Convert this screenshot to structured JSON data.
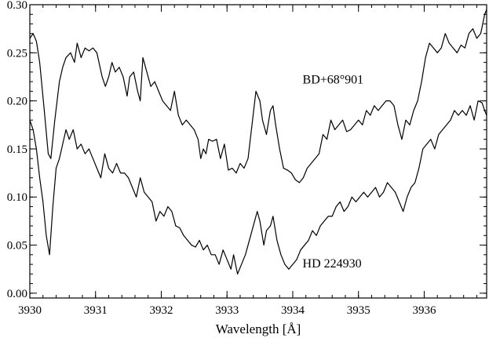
{
  "chart_data": {
    "type": "line",
    "title": "",
    "xlabel": "Wavelength [Å]",
    "ylabel": "",
    "xlim": [
      3930.0,
      3936.95
    ],
    "ylim": [
      -0.005,
      0.3
    ],
    "x_ticks": [
      3930,
      3931,
      3932,
      3933,
      3934,
      3935,
      3936
    ],
    "x_tick_labels": [
      "3930",
      "3931",
      "3932",
      "3933",
      "3934",
      "3935",
      "3936"
    ],
    "y_ticks": [
      0.0,
      0.05,
      0.1,
      0.15,
      0.2,
      0.25,
      0.3
    ],
    "y_tick_labels": [
      "0.00",
      "0.05",
      "0.10",
      "0.15",
      "0.20",
      "0.25",
      "0.30"
    ],
    "grid": false,
    "legend": "none",
    "series": [
      {
        "name": "BD+68°901",
        "label_position": {
          "x": 3934.15,
          "y": 0.218
        },
        "x": [
          3930.0,
          3930.05,
          3930.1,
          3930.15,
          3930.22,
          3930.28,
          3930.32,
          3930.38,
          3930.45,
          3930.5,
          3930.55,
          3930.62,
          3930.68,
          3930.72,
          3930.78,
          3930.84,
          3930.9,
          3930.96,
          3931.02,
          3931.1,
          3931.15,
          3931.2,
          3931.25,
          3931.3,
          3931.36,
          3931.42,
          3931.48,
          3931.52,
          3931.58,
          3931.64,
          3931.68,
          3931.72,
          3931.78,
          3931.84,
          3931.9,
          3931.96,
          3932.02,
          3932.08,
          3932.14,
          3932.2,
          3932.26,
          3932.32,
          3932.38,
          3932.44,
          3932.5,
          3932.56,
          3932.6,
          3932.64,
          3932.68,
          3932.72,
          3932.78,
          3932.84,
          3932.9,
          3932.96,
          3933.02,
          3933.08,
          3933.14,
          3933.2,
          3933.26,
          3933.32,
          3933.38,
          3933.44,
          3933.5,
          3933.54,
          3933.6,
          3933.66,
          3933.7,
          3933.74,
          3933.8,
          3933.86,
          3933.92,
          3933.98,
          3934.04,
          3934.1,
          3934.16,
          3934.22,
          3934.28,
          3934.34,
          3934.4,
          3934.46,
          3934.52,
          3934.58,
          3934.64,
          3934.7,
          3934.76,
          3934.82,
          3934.88,
          3934.94,
          3935.0,
          3935.06,
          3935.12,
          3935.18,
          3935.24,
          3935.3,
          3935.36,
          3935.42,
          3935.48,
          3935.54,
          3935.6,
          3935.66,
          3935.72,
          3935.78,
          3935.84,
          3935.9,
          3935.96,
          3936.02,
          3936.08,
          3936.14,
          3936.2,
          3936.26,
          3936.32,
          3936.38,
          3936.44,
          3936.5,
          3936.56,
          3936.62,
          3936.68,
          3936.74,
          3936.8,
          3936.86,
          3936.92,
          3936.95
        ],
        "y": [
          0.265,
          0.27,
          0.262,
          0.24,
          0.19,
          0.145,
          0.14,
          0.18,
          0.22,
          0.235,
          0.245,
          0.25,
          0.24,
          0.26,
          0.245,
          0.255,
          0.252,
          0.255,
          0.25,
          0.225,
          0.215,
          0.225,
          0.24,
          0.23,
          0.235,
          0.225,
          0.205,
          0.225,
          0.23,
          0.21,
          0.2,
          0.245,
          0.23,
          0.215,
          0.22,
          0.21,
          0.2,
          0.195,
          0.19,
          0.21,
          0.185,
          0.175,
          0.18,
          0.175,
          0.17,
          0.16,
          0.14,
          0.15,
          0.145,
          0.16,
          0.158,
          0.16,
          0.14,
          0.155,
          0.128,
          0.13,
          0.125,
          0.135,
          0.13,
          0.14,
          0.175,
          0.21,
          0.2,
          0.18,
          0.165,
          0.19,
          0.195,
          0.175,
          0.15,
          0.13,
          0.128,
          0.125,
          0.118,
          0.115,
          0.12,
          0.13,
          0.135,
          0.14,
          0.145,
          0.165,
          0.16,
          0.18,
          0.17,
          0.175,
          0.18,
          0.168,
          0.17,
          0.175,
          0.18,
          0.175,
          0.19,
          0.185,
          0.195,
          0.19,
          0.195,
          0.2,
          0.2,
          0.195,
          0.175,
          0.16,
          0.18,
          0.175,
          0.19,
          0.2,
          0.22,
          0.245,
          0.26,
          0.255,
          0.25,
          0.255,
          0.27,
          0.26,
          0.255,
          0.25,
          0.258,
          0.255,
          0.27,
          0.275,
          0.265,
          0.27,
          0.29,
          0.295
        ]
      },
      {
        "name": "HD 224930",
        "label_position": {
          "x": 3934.15,
          "y": 0.027
        },
        "x": [
          3930.0,
          3930.05,
          3930.1,
          3930.15,
          3930.2,
          3930.25,
          3930.3,
          3930.35,
          3930.4,
          3930.45,
          3930.5,
          3930.55,
          3930.6,
          3930.66,
          3930.72,
          3930.78,
          3930.84,
          3930.9,
          3930.96,
          3931.02,
          3931.08,
          3931.14,
          3931.2,
          3931.26,
          3931.32,
          3931.38,
          3931.44,
          3931.5,
          3931.56,
          3931.62,
          3931.68,
          3931.74,
          3931.8,
          3931.86,
          3931.92,
          3931.98,
          3932.04,
          3932.1,
          3932.16,
          3932.22,
          3932.28,
          3932.34,
          3932.4,
          3932.46,
          3932.52,
          3932.58,
          3932.64,
          3932.7,
          3932.76,
          3932.82,
          3932.88,
          3932.94,
          3933.0,
          3933.06,
          3933.1,
          3933.16,
          3933.22,
          3933.28,
          3933.34,
          3933.4,
          3933.46,
          3933.5,
          3933.56,
          3933.6,
          3933.66,
          3933.7,
          3933.76,
          3933.82,
          3933.88,
          3933.94,
          3934.0,
          3934.06,
          3934.12,
          3934.18,
          3934.24,
          3934.3,
          3934.36,
          3934.42,
          3934.48,
          3934.54,
          3934.6,
          3934.66,
          3934.72,
          3934.78,
          3934.84,
          3934.9,
          3934.96,
          3935.02,
          3935.08,
          3935.14,
          3935.2,
          3935.26,
          3935.32,
          3935.38,
          3935.44,
          3935.5,
          3935.56,
          3935.62,
          3935.68,
          3935.74,
          3935.8,
          3935.86,
          3935.92,
          3935.98,
          3936.04,
          3936.1,
          3936.16,
          3936.22,
          3936.28,
          3936.34,
          3936.4,
          3936.46,
          3936.52,
          3936.58,
          3936.64,
          3936.7,
          3936.76,
          3936.82,
          3936.88,
          3936.92,
          3936.95
        ],
        "y": [
          0.18,
          0.17,
          0.15,
          0.12,
          0.095,
          0.06,
          0.04,
          0.09,
          0.13,
          0.14,
          0.155,
          0.17,
          0.16,
          0.17,
          0.15,
          0.155,
          0.145,
          0.15,
          0.14,
          0.13,
          0.12,
          0.145,
          0.13,
          0.125,
          0.135,
          0.125,
          0.125,
          0.12,
          0.11,
          0.1,
          0.12,
          0.105,
          0.1,
          0.095,
          0.075,
          0.085,
          0.08,
          0.09,
          0.085,
          0.07,
          0.068,
          0.06,
          0.055,
          0.05,
          0.048,
          0.055,
          0.045,
          0.05,
          0.04,
          0.04,
          0.03,
          0.045,
          0.035,
          0.025,
          0.04,
          0.02,
          0.03,
          0.04,
          0.055,
          0.07,
          0.085,
          0.075,
          0.05,
          0.065,
          0.07,
          0.08,
          0.055,
          0.04,
          0.03,
          0.025,
          0.03,
          0.035,
          0.045,
          0.05,
          0.055,
          0.065,
          0.06,
          0.07,
          0.075,
          0.08,
          0.08,
          0.09,
          0.095,
          0.085,
          0.09,
          0.1,
          0.095,
          0.1,
          0.105,
          0.1,
          0.105,
          0.11,
          0.1,
          0.105,
          0.115,
          0.11,
          0.105,
          0.095,
          0.085,
          0.1,
          0.11,
          0.115,
          0.13,
          0.15,
          0.155,
          0.16,
          0.15,
          0.165,
          0.17,
          0.175,
          0.18,
          0.19,
          0.185,
          0.19,
          0.185,
          0.195,
          0.18,
          0.2,
          0.198,
          0.19,
          0.185
        ]
      }
    ]
  }
}
